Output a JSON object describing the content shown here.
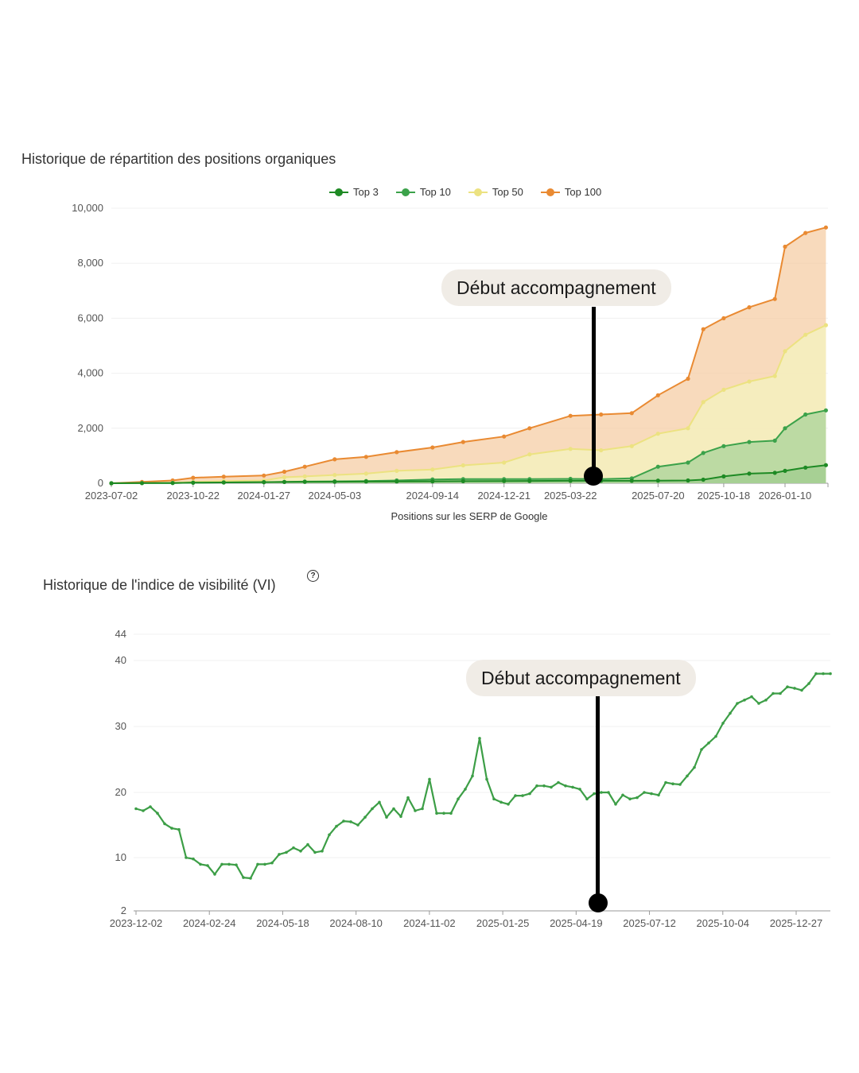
{
  "chart_data": [
    {
      "type": "area",
      "stacked": true,
      "title": "Historique de répartition des positions organiques",
      "xlabel": "Positions sur les SERP de Google",
      "ylabel": "",
      "ylim": [
        0,
        10000
      ],
      "yticks": [
        "10,000",
        "8,000",
        "6,000",
        "4,000",
        "2,000",
        "0"
      ],
      "xticks": [
        "2023-07-02",
        "2023-10-22",
        "2024-01-27",
        "2024-05-03",
        "2024-09-14",
        "2024-12-21",
        "2025-03-22",
        "2025-07-20",
        "2025-10-18",
        "2026-01-10"
      ],
      "legend": [
        "Top 3",
        "Top 10",
        "Top 50",
        "Top 100"
      ],
      "annotation": "Début accompagnement",
      "annotation_date": "2025-05-10",
      "x": [
        "2023-07-02",
        "2023-08-13",
        "2023-09-24",
        "2023-10-22",
        "2023-12-03",
        "2024-01-27",
        "2024-02-24",
        "2024-03-23",
        "2024-05-03",
        "2024-06-15",
        "2024-07-27",
        "2024-09-14",
        "2024-10-26",
        "2024-12-21",
        "2025-01-25",
        "2025-03-22",
        "2025-05-03",
        "2025-06-14",
        "2025-07-20",
        "2025-08-30",
        "2025-09-20",
        "2025-10-18",
        "2025-11-22",
        "2025-12-27",
        "2026-01-10",
        "2026-02-07",
        "2026-03-07"
      ],
      "series": [
        {
          "name": "Top 3",
          "color": "#1e8a24",
          "values": [
            0,
            5,
            10,
            20,
            30,
            40,
            45,
            50,
            55,
            60,
            65,
            70,
            75,
            80,
            85,
            90,
            90,
            90,
            95,
            100,
            130,
            250,
            350,
            380,
            450,
            570,
            660
          ]
        },
        {
          "name": "Top 10",
          "color": "#3ba24a",
          "values": [
            0,
            5,
            10,
            20,
            30,
            40,
            50,
            60,
            70,
            80,
            100,
            140,
            150,
            150,
            150,
            160,
            150,
            180,
            600,
            750,
            1100,
            1350,
            1500,
            1550,
            2000,
            2500,
            2650
          ]
        },
        {
          "name": "Top 50",
          "color": "#ece281",
          "values": [
            0,
            10,
            20,
            50,
            80,
            100,
            220,
            250,
            300,
            350,
            450,
            500,
            650,
            750,
            1050,
            1250,
            1200,
            1350,
            1800,
            2000,
            2950,
            3400,
            3700,
            3900,
            4800,
            5400,
            5750
          ]
        },
        {
          "name": "Top 100",
          "color": "#e98a32",
          "values": [
            0,
            50,
            100,
            200,
            240,
            280,
            420,
            600,
            870,
            960,
            1130,
            1300,
            1500,
            1700,
            2000,
            2450,
            2500,
            2550,
            3200,
            3800,
            5600,
            6000,
            6400,
            6700,
            8600,
            9100,
            9300
          ]
        }
      ]
    },
    {
      "type": "line",
      "title": "Historique de l'indice de visibilité (VI)",
      "xlabel": "",
      "ylabel": "",
      "ylim": [
        2,
        44
      ],
      "yticks": [
        "44",
        "40",
        "30",
        "20",
        "10",
        "2"
      ],
      "ytick_values": [
        44,
        40,
        30,
        20,
        10,
        2
      ],
      "xticks": [
        "2023-12-02",
        "2024-02-24",
        "2024-05-18",
        "2024-08-10",
        "2024-11-02",
        "2025-01-25",
        "2025-04-19",
        "2025-07-12",
        "2025-10-04",
        "2025-12-27"
      ],
      "annotation": "Début accompagnement",
      "annotation_date": "2025-05-10",
      "series": [
        {
          "name": "VI",
          "color": "#3c9e46",
          "values": [
            17.5,
            17.2,
            17.8,
            16.8,
            15.2,
            14.5,
            14.3,
            10.0,
            9.8,
            9.0,
            8.8,
            7.5,
            9.0,
            9.0,
            8.9,
            7.0,
            6.9,
            9.0,
            9.0,
            9.2,
            10.5,
            10.8,
            11.5,
            11.0,
            12.0,
            10.8,
            11.0,
            13.5,
            14.8,
            15.6,
            15.5,
            15.0,
            16.2,
            17.5,
            18.5,
            16.2,
            17.5,
            16.3,
            19.2,
            17.2,
            17.5,
            22.0,
            16.8,
            16.8,
            16.8,
            19.0,
            20.5,
            22.5,
            28.2,
            22.0,
            19.0,
            18.5,
            18.2,
            19.5,
            19.5,
            19.8,
            21.0,
            21.0,
            20.8,
            21.5,
            21.0,
            20.8,
            20.5,
            19.0,
            19.8,
            20.0,
            20.0,
            18.2,
            19.6,
            19.0,
            19.2,
            20.0,
            19.8,
            19.6,
            21.5,
            21.3,
            21.2,
            22.5,
            23.8,
            26.5,
            27.5,
            28.5,
            30.5,
            32.0,
            33.5,
            34.0,
            34.5,
            33.5,
            34.0,
            35.0,
            35.0,
            36.0,
            35.8,
            35.5,
            36.5,
            38.0,
            38.0,
            38.0
          ]
        }
      ]
    }
  ]
}
